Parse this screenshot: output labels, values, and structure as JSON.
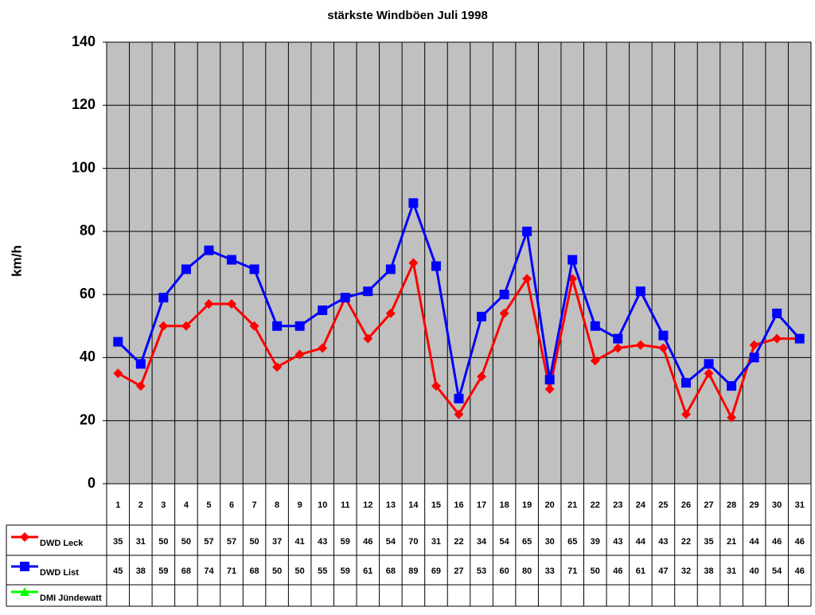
{
  "chart_data": {
    "type": "line",
    "title": "stärkste Windböen Juli 1998",
    "ylabel": "km/h",
    "categories": [
      "1",
      "2",
      "3",
      "4",
      "5",
      "6",
      "7",
      "8",
      "9",
      "10",
      "11",
      "12",
      "13",
      "14",
      "15",
      "16",
      "17",
      "18",
      "19",
      "20",
      "21",
      "22",
      "23",
      "24",
      "25",
      "26",
      "27",
      "28",
      "29",
      "30",
      "31"
    ],
    "ylim": [
      0,
      140
    ],
    "yticks": [
      0,
      20,
      40,
      60,
      80,
      100,
      120,
      140
    ],
    "grid": true,
    "series": [
      {
        "name": "DWD Leck",
        "color": "#ff0000",
        "marker": "diamond",
        "values": [
          35,
          31,
          50,
          50,
          57,
          57,
          50,
          37,
          41,
          43,
          59,
          46,
          54,
          70,
          31,
          22,
          34,
          54,
          65,
          30,
          65,
          39,
          43,
          44,
          43,
          22,
          35,
          21,
          44,
          46,
          46
        ]
      },
      {
        "name": "DWD List",
        "color": "#0000ff",
        "marker": "square",
        "values": [
          45,
          38,
          59,
          68,
          74,
          71,
          68,
          50,
          50,
          55,
          59,
          61,
          68,
          89,
          69,
          27,
          53,
          60,
          80,
          33,
          71,
          50,
          46,
          61,
          47,
          32,
          38,
          31,
          40,
          54,
          46
        ]
      },
      {
        "name": "DMI Jündewatt",
        "color": "#00ff00",
        "marker": "triangle",
        "values": [
          null,
          null,
          null,
          null,
          null,
          null,
          null,
          null,
          null,
          null,
          null,
          null,
          null,
          null,
          null,
          null,
          null,
          null,
          null,
          null,
          null,
          null,
          null,
          null,
          null,
          null,
          null,
          null,
          null,
          null,
          null
        ]
      }
    ]
  }
}
